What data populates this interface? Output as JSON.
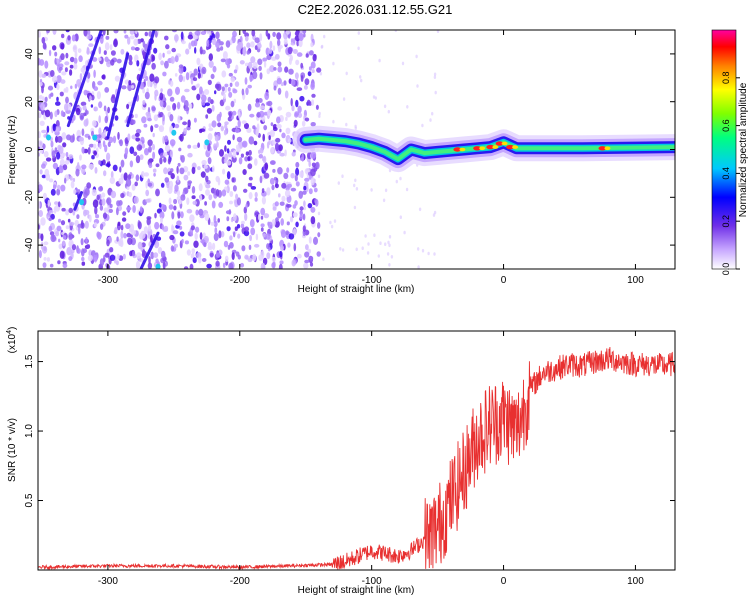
{
  "figure": {
    "title": "C2E2.2026.031.12.55.G21",
    "colors": {
      "axis": "#000000",
      "line": "#e83030",
      "background": "#ffffff"
    }
  },
  "chart_data": [
    {
      "type": "heatmap",
      "title": "C2E2.2026.031.12.55.G21",
      "xlabel": "Height of straight line (km)",
      "ylabel": "Frequency (Hz)",
      "xlim": [
        -353,
        130
      ],
      "ylim": [
        -50,
        50
      ],
      "xticks": [
        -300,
        -200,
        -100,
        0,
        100
      ],
      "yticks": [
        -40,
        -20,
        0,
        20,
        40
      ],
      "colorbar": {
        "label": "Normalized spectral amplitude",
        "range": [
          0,
          1
        ],
        "ticks": [
          0.0,
          0.2,
          0.4,
          0.6,
          0.8
        ],
        "tick_labels": [
          "0.0",
          "0.2",
          "0.4",
          "0.6",
          "0.8"
        ],
        "colormap": [
          "#ffffff",
          "#b48cff",
          "#6020e0",
          "#0000ff",
          "#00c8ff",
          "#00ff80",
          "#80ff00",
          "#ffff00",
          "#ff8000",
          "#ff0000",
          "#ff00a0"
        ]
      },
      "signal_track": [
        {
          "x": -150,
          "y": 4.0
        },
        {
          "x": -140,
          "y": 4.5
        },
        {
          "x": -130,
          "y": 4.0
        },
        {
          "x": -120,
          "y": 3.5
        },
        {
          "x": -110,
          "y": 2.5
        },
        {
          "x": -100,
          "y": 1.0
        },
        {
          "x": -90,
          "y": -1.0
        },
        {
          "x": -80,
          "y": -4.0
        },
        {
          "x": -75,
          "y": -2.0
        },
        {
          "x": -70,
          "y": 0.0
        },
        {
          "x": -60,
          "y": -1.5
        },
        {
          "x": -50,
          "y": -1.0
        },
        {
          "x": -40,
          "y": -0.5
        },
        {
          "x": -30,
          "y": 0.0
        },
        {
          "x": -20,
          "y": 0.5
        },
        {
          "x": -10,
          "y": 1.0
        },
        {
          "x": 0,
          "y": 3.0
        },
        {
          "x": 10,
          "y": 0.5
        },
        {
          "x": 30,
          "y": 0.5
        },
        {
          "x": 60,
          "y": 0.5
        },
        {
          "x": 100,
          "y": 0.8
        },
        {
          "x": 130,
          "y": 1.0
        }
      ],
      "noise_region_x": [
        -353,
        -140
      ]
    },
    {
      "type": "line",
      "xlabel": "Height of straight line (km)",
      "ylabel": "SNR (10 * v/v)",
      "y_multiplier_label": "(x10",
      "y_multiplier_exp": "4",
      "xlim": [
        -353,
        130
      ],
      "ylim": [
        0,
        1.72
      ],
      "xticks": [
        -300,
        -200,
        -100,
        0,
        100
      ],
      "yticks": [
        0.5,
        1.0,
        1.5
      ],
      "ytick_labels": [
        "0.5",
        "1.0",
        "1.5"
      ],
      "series": [
        {
          "name": "SNR",
          "points": [
            {
              "x": -353,
              "y": 0.02
            },
            {
              "x": -300,
              "y": 0.03
            },
            {
              "x": -250,
              "y": 0.03
            },
            {
              "x": -200,
              "y": 0.02
            },
            {
              "x": -160,
              "y": 0.03
            },
            {
              "x": -130,
              "y": 0.04
            },
            {
              "x": -120,
              "y": 0.06
            },
            {
              "x": -110,
              "y": 0.1
            },
            {
              "x": -100,
              "y": 0.14
            },
            {
              "x": -90,
              "y": 0.12
            },
            {
              "x": -80,
              "y": 0.1
            },
            {
              "x": -70,
              "y": 0.14
            },
            {
              "x": -60,
              "y": 0.22
            },
            {
              "x": -50,
              "y": 0.3
            },
            {
              "x": -40,
              "y": 0.5
            },
            {
              "x": -30,
              "y": 0.7
            },
            {
              "x": -20,
              "y": 0.95
            },
            {
              "x": -10,
              "y": 1.05
            },
            {
              "x": 0,
              "y": 1.1
            },
            {
              "x": 10,
              "y": 1.0
            },
            {
              "x": 20,
              "y": 1.3
            },
            {
              "x": 30,
              "y": 1.42
            },
            {
              "x": 40,
              "y": 1.45
            },
            {
              "x": 50,
              "y": 1.48
            },
            {
              "x": 60,
              "y": 1.47
            },
            {
              "x": 70,
              "y": 1.5
            },
            {
              "x": 80,
              "y": 1.52
            },
            {
              "x": 90,
              "y": 1.5
            },
            {
              "x": 100,
              "y": 1.48
            },
            {
              "x": 110,
              "y": 1.48
            },
            {
              "x": 120,
              "y": 1.47
            },
            {
              "x": 130,
              "y": 1.48
            }
          ]
        }
      ]
    }
  ]
}
